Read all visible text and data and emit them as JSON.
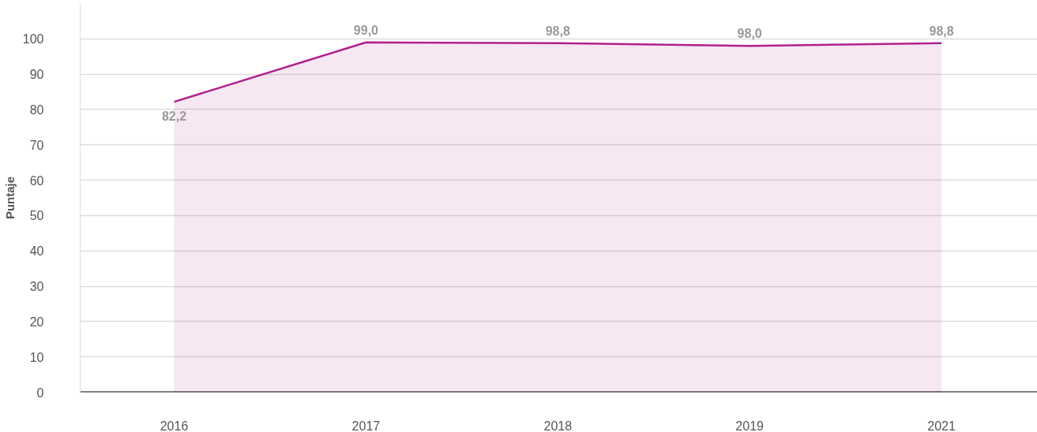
{
  "chart_data": {
    "type": "area",
    "ylabel": "Puntaje",
    "categories": [
      "2016",
      "2017",
      "2018",
      "2019",
      "2021"
    ],
    "series": [
      {
        "color": "#b0208e",
        "values": [
          82.2,
          99.0,
          98.8,
          98.0,
          98.8
        ],
        "value_labels": [
          "82,2",
          "99,0",
          "98,8",
          "98,0",
          "98,8"
        ]
      }
    ],
    "ylim": [
      0,
      110
    ],
    "yticks": [
      0,
      10,
      20,
      30,
      40,
      50,
      60,
      70,
      80,
      90,
      100
    ],
    "grid": "y"
  }
}
